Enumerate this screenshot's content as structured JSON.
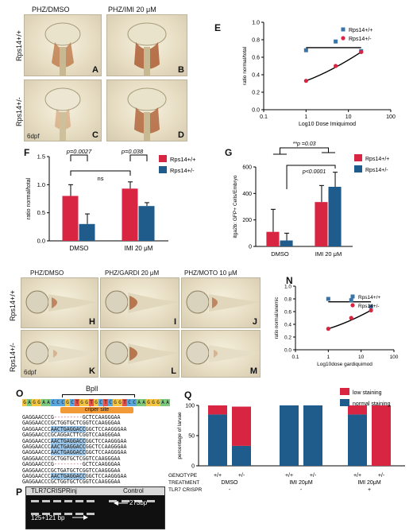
{
  "colors": {
    "wt": "#3a74a7",
    "het": "#d82642",
    "bar_wt": "#d82642",
    "bar_het": "#1f5c8c",
    "low": "#d82642",
    "normal": "#1f5c8c"
  },
  "panel_A_D": {
    "col_titles": [
      "PHZ/DMSO",
      "PHZ/IMI 20 μM"
    ],
    "row_labels": [
      "Rps14+/+",
      "Rps14+/-"
    ],
    "panel_letters": [
      "A",
      "B",
      "C",
      "D"
    ],
    "dpf": "6dpf"
  },
  "panel_E": {
    "letter": "E",
    "chart_data": {
      "type": "scatter",
      "xlabel": "Log10 Dose Imiquimod",
      "ylabel": "ratio normal/total",
      "xscale": "log",
      "xlim": [
        0.1,
        100
      ],
      "ylim": [
        0.0,
        1.0
      ],
      "x_ticks": [
        "0.1",
        "1",
        "10",
        "100"
      ],
      "y_ticks": [
        "0.0",
        "0.2",
        "0.4",
        "0.6",
        "0.8",
        "1.0"
      ],
      "series": [
        {
          "name": "Rps14+/+",
          "x": [
            1,
            5,
            20
          ],
          "y": [
            0.68,
            0.78,
            0.67
          ]
        },
        {
          "name": "Rps14+/-",
          "x": [
            1,
            5,
            20
          ],
          "y": [
            0.33,
            0.5,
            0.66
          ]
        }
      ]
    }
  },
  "panel_F": {
    "letter": "F",
    "chart_data": {
      "type": "bar",
      "ylabel": "ratio normal/total",
      "ylim": [
        0.0,
        1.5
      ],
      "y_ticks": [
        "0.0",
        "0.5",
        "1.0",
        "1.5"
      ],
      "categories": [
        "DMSO",
        "IMI 20 μM"
      ],
      "series": [
        {
          "name": "Rps14+/+",
          "values": [
            0.8,
            0.93
          ],
          "errors": [
            0.2,
            0.12
          ]
        },
        {
          "name": "Rps14+/-",
          "values": [
            0.3,
            0.62
          ],
          "errors": [
            0.18,
            0.06
          ]
        }
      ],
      "annotations": [
        "p=0.0027",
        "p=0.038",
        "ns"
      ]
    }
  },
  "panel_G": {
    "letter": "G",
    "chart_data": {
      "type": "bar",
      "ylabel": "itga2b: GFP+ Cells/Embryo",
      "ylim": [
        0,
        600
      ],
      "y_ticks": [
        "0",
        "200",
        "400",
        "600"
      ],
      "categories": [
        "DMSO",
        "IMI 20 μM"
      ],
      "series": [
        {
          "name": "Rps14+/+",
          "values": [
            110,
            335
          ],
          "errors": [
            170,
            125
          ]
        },
        {
          "name": "Rps14+/-",
          "values": [
            45,
            450
          ],
          "errors": [
            55,
            110
          ]
        }
      ],
      "annotations": [
        "**p =0.03",
        "p<0.0001"
      ]
    }
  },
  "panel_H_M": {
    "col_titles": [
      "PHZ/DMSO",
      "PHZ/GARDI 20 μM",
      "PHZ/MOTO 10 μM"
    ],
    "row_labels": [
      "Rps14+/+",
      "Rps14+/-"
    ],
    "panel_letters": [
      "H",
      "I",
      "J",
      "K",
      "L",
      "M"
    ],
    "dpf": "6dpf"
  },
  "panel_N": {
    "letter": "N",
    "chart_data": {
      "type": "scatter",
      "xlabel": "Log10dose gardiquimod",
      "ylabel": "ratio normal/anemic",
      "xscale": "log",
      "xlim": [
        0.1,
        100
      ],
      "ylim": [
        0.0,
        1.0
      ],
      "x_ticks": [
        "0.1",
        "1",
        "10",
        "100"
      ],
      "y_ticks": [
        "0.0",
        "0.2",
        "0.4",
        "0.6",
        "0.8",
        "1.0"
      ],
      "series": [
        {
          "name": "Rps14+/+",
          "x": [
            1,
            5,
            20
          ],
          "y": [
            0.8,
            0.78,
            0.68
          ]
        },
        {
          "name": "Rps14+/-",
          "x": [
            1,
            5,
            20
          ],
          "y": [
            0.33,
            0.5,
            0.62
          ]
        }
      ]
    }
  },
  "panel_O": {
    "letter": "O",
    "enzyme": "BplI",
    "site_label": "criper site",
    "reference": "GAGGAACCCGCTGGTGCTCGGTCCAAGGGAA",
    "sequences": [
      "GAGGAACCCG---------GCTCCAAGGGAA",
      "GAGGAACCCGCTGGTGCTCGGTCCAAGGGAA",
      "GAGGAACCCAACTGAGGACCGGCTCCAAGGGAA",
      "GAGGAACCCGCAGGACTTCGGTCCAAGGGAA",
      "GAGGAACCCAACTGAGGACCGGCTCCAAGGGAA",
      "GAGGAACCCAACTGAGGACCGGCTCCAAGGGAA",
      "GAGGAACCCAACTGAGGACCGGCTCCAAGGGAA",
      "GAGGAACCCGCTGGTGCTCGGTCCAAGGGAA",
      "GAGGAACCCG---------GCTCCAAGGGAA",
      "GAGGAACCCGCTGATGCTCGGTCCAAGGGAA",
      "GAGGAACCCAACTGAGGACCGGCTCCAAGGGAA",
      "GAGGAACCCGCTGGTGCTCGGTCCAAGGGAA"
    ]
  },
  "panel_P": {
    "letter": "P",
    "lane_groups": [
      "TLR7CRISPRinj",
      "Control"
    ],
    "band_labels": [
      "273bp",
      "125+121 bp"
    ]
  },
  "panel_Q": {
    "letter": "Q",
    "chart_data": {
      "type": "bar",
      "stacked": true,
      "ylabel": "percentage of larvae",
      "ylim": [
        0,
        100
      ],
      "y_ticks": [
        "0",
        "50",
        "100"
      ],
      "legend": [
        "low staining",
        "normal staining"
      ],
      "row_headers": [
        "GENOTYPE",
        "TREATMENT",
        "TLR7 CRISPR"
      ],
      "genotypes": [
        "+/+",
        "+/-",
        "+/+",
        "+/-",
        "+/+",
        "+/-"
      ],
      "treatments": [
        "DMSO",
        "IMI 20μM",
        "IMI 20μM"
      ],
      "crispr": [
        "-",
        "-",
        "+"
      ],
      "series": [
        {
          "name": "normal staining",
          "values": [
            85,
            33,
            100,
            100,
            85,
            0
          ]
        },
        {
          "name": "low staining",
          "values": [
            15,
            65,
            0,
            0,
            15,
            100
          ]
        }
      ]
    }
  }
}
